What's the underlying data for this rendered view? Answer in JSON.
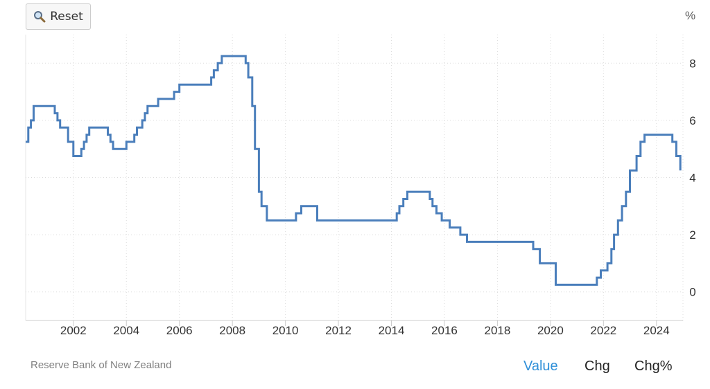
{
  "toolbar": {
    "reset_label": "Reset",
    "reset_icon": "magnifier-icon"
  },
  "footer": {
    "source": "Reserve Bank of New Zealand",
    "modes": [
      {
        "label": "Value",
        "active": true
      },
      {
        "label": "Chg",
        "active": false
      },
      {
        "label": "Chg%",
        "active": false
      }
    ]
  },
  "colors": {
    "line": "#4a7ebb",
    "grid": "#dcdcdc",
    "active_mode": "#2f8fd8"
  },
  "chart_data": {
    "type": "line",
    "step": true,
    "unit": "%",
    "grid": true,
    "xlim": [
      2000.2,
      2025.0
    ],
    "ylim": [
      -1,
      9
    ],
    "x_ticks": [
      2002,
      2004,
      2006,
      2008,
      2010,
      2012,
      2014,
      2016,
      2018,
      2020,
      2022,
      2024
    ],
    "y_ticks": [
      0,
      2,
      4,
      6,
      8
    ],
    "series": [
      {
        "name": "",
        "points": [
          [
            2000.2,
            5.25
          ],
          [
            2000.3,
            5.75
          ],
          [
            2000.4,
            6.0
          ],
          [
            2000.5,
            6.5
          ],
          [
            2001.3,
            6.25
          ],
          [
            2001.4,
            6.0
          ],
          [
            2001.5,
            5.75
          ],
          [
            2001.8,
            5.25
          ],
          [
            2002.0,
            4.75
          ],
          [
            2002.3,
            5.0
          ],
          [
            2002.4,
            5.25
          ],
          [
            2002.5,
            5.5
          ],
          [
            2002.6,
            5.75
          ],
          [
            2003.3,
            5.5
          ],
          [
            2003.4,
            5.25
          ],
          [
            2003.5,
            5.0
          ],
          [
            2004.0,
            5.25
          ],
          [
            2004.3,
            5.5
          ],
          [
            2004.4,
            5.75
          ],
          [
            2004.6,
            6.0
          ],
          [
            2004.7,
            6.25
          ],
          [
            2004.8,
            6.5
          ],
          [
            2005.2,
            6.75
          ],
          [
            2005.8,
            7.0
          ],
          [
            2006.0,
            7.25
          ],
          [
            2007.2,
            7.5
          ],
          [
            2007.3,
            7.75
          ],
          [
            2007.45,
            8.0
          ],
          [
            2007.6,
            8.25
          ],
          [
            2008.5,
            8.0
          ],
          [
            2008.6,
            7.5
          ],
          [
            2008.75,
            6.5
          ],
          [
            2008.85,
            5.0
          ],
          [
            2009.0,
            3.5
          ],
          [
            2009.1,
            3.0
          ],
          [
            2009.3,
            2.5
          ],
          [
            2010.4,
            2.75
          ],
          [
            2010.6,
            3.0
          ],
          [
            2011.2,
            2.5
          ],
          [
            2014.2,
            2.75
          ],
          [
            2014.3,
            3.0
          ],
          [
            2014.45,
            3.25
          ],
          [
            2014.6,
            3.5
          ],
          [
            2015.45,
            3.25
          ],
          [
            2015.55,
            3.0
          ],
          [
            2015.7,
            2.75
          ],
          [
            2015.9,
            2.5
          ],
          [
            2016.2,
            2.25
          ],
          [
            2016.6,
            2.0
          ],
          [
            2016.85,
            1.75
          ],
          [
            2019.35,
            1.5
          ],
          [
            2019.6,
            1.0
          ],
          [
            2020.2,
            0.25
          ],
          [
            2021.75,
            0.5
          ],
          [
            2021.9,
            0.75
          ],
          [
            2022.15,
            1.0
          ],
          [
            2022.3,
            1.5
          ],
          [
            2022.4,
            2.0
          ],
          [
            2022.55,
            2.5
          ],
          [
            2022.7,
            3.0
          ],
          [
            2022.85,
            3.5
          ],
          [
            2023.0,
            4.25
          ],
          [
            2023.25,
            4.75
          ],
          [
            2023.4,
            5.25
          ],
          [
            2023.55,
            5.5
          ],
          [
            2024.6,
            5.25
          ],
          [
            2024.75,
            4.75
          ],
          [
            2024.9,
            4.25
          ],
          [
            2024.9,
            4.25
          ]
        ]
      }
    ]
  }
}
